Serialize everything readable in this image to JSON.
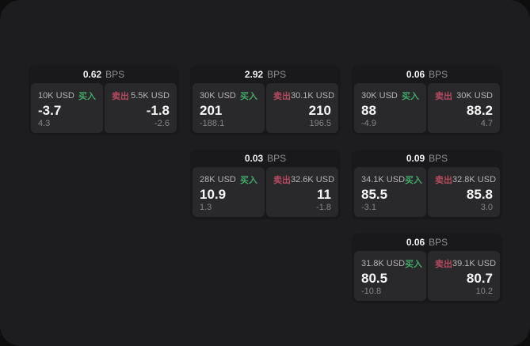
{
  "labels": {
    "buy": "买入",
    "sell": "卖出",
    "bps": "BPS"
  },
  "colors": {
    "buy_accent": "#3fa865",
    "sell_accent": "#b34a5e",
    "panel_bg": "#1d1d1f",
    "card_bg": "#19191b",
    "cell_bg": "#29292b"
  },
  "cards": [
    {
      "bps": "0.62",
      "buy": {
        "amount": "10K USD",
        "value": "-3.7",
        "delta": "4.3"
      },
      "sell": {
        "amount": "5.5K USD",
        "value": "-1.8",
        "delta": "-2.6"
      }
    },
    {
      "bps": "2.92",
      "buy": {
        "amount": "30K USD",
        "value": "201",
        "delta": "-188.1"
      },
      "sell": {
        "amount": "30.1K USD",
        "value": "210",
        "delta": "196.5"
      }
    },
    {
      "bps": "0.06",
      "buy": {
        "amount": "30K USD",
        "value": "88",
        "delta": "-4.9"
      },
      "sell": {
        "amount": "30K USD",
        "value": "88.2",
        "delta": "4.7"
      }
    },
    {
      "bps": "0.03",
      "buy": {
        "amount": "28K USD",
        "value": "10.9",
        "delta": "1.3"
      },
      "sell": {
        "amount": "32.6K USD",
        "value": "11",
        "delta": "-1.8"
      }
    },
    {
      "bps": "0.09",
      "buy": {
        "amount": "34.1K USD",
        "value": "85.5",
        "delta": "-3.1"
      },
      "sell": {
        "amount": "32.8K USD",
        "value": "85.8",
        "delta": "3.0"
      }
    },
    {
      "bps": "0.06",
      "buy": {
        "amount": "31.8K USD",
        "value": "80.5",
        "delta": "-10.8"
      },
      "sell": {
        "amount": "39.1K USD",
        "value": "80.7",
        "delta": "10.2"
      }
    }
  ]
}
